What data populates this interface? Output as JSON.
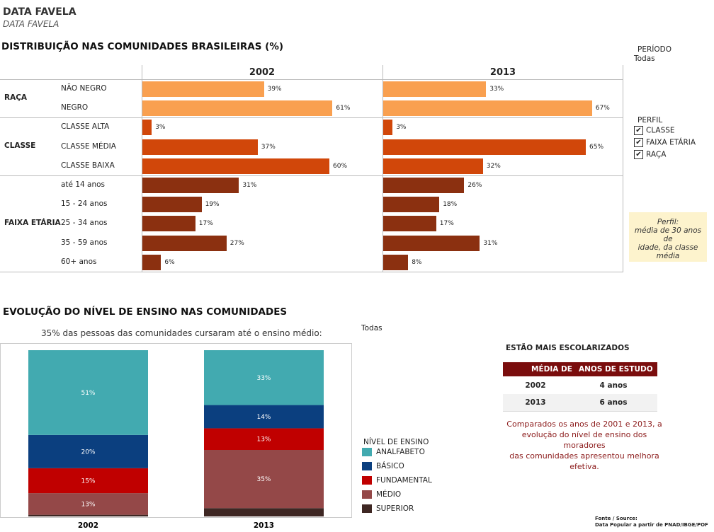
{
  "header": {
    "title": "DATA FAVELA",
    "subtitle": "DATA FAVELA"
  },
  "colors": {
    "raca": "#f9a050",
    "classe": "#d1470a",
    "faixa": "#8b3010",
    "analfabeto": "#42aab0",
    "basico": "#0b3f7f",
    "fundamental": "#c00000",
    "medio": "#944848",
    "superior": "#3e2723",
    "table_header": "#7a0d0d",
    "note_bg": "#fdf3cd"
  },
  "dist": {
    "title": "DISTRIBUIÇÃO NAS COMUNIDADES BRASILEIRAS (%)",
    "years": [
      "2002",
      "2013"
    ],
    "groups": [
      {
        "label": "RAÇA",
        "color_key": "raca",
        "rows": [
          {
            "label": "NÃO NEGRO",
            "values": [
              39,
              33
            ],
            "labels": [
              "39%",
              "33%"
            ]
          },
          {
            "label": "NEGRO",
            "values": [
              61,
              67
            ],
            "labels": [
              "61%",
              "67%"
            ]
          }
        ]
      },
      {
        "label": "CLASSE",
        "color_key": "classe",
        "rows": [
          {
            "label": "CLASSE ALTA",
            "values": [
              3,
              3
            ],
            "labels": [
              "3%",
              "3%"
            ]
          },
          {
            "label": "CLASSE MÉDIA",
            "values": [
              37,
              65
            ],
            "labels": [
              "37%",
              "65%"
            ]
          },
          {
            "label": "CLASSE BAIXA",
            "values": [
              60,
              32
            ],
            "labels": [
              "60%",
              "32%"
            ]
          }
        ]
      },
      {
        "label": "FAIXA ETÁRIA",
        "color_key": "faixa",
        "rows": [
          {
            "label": "até 14 anos",
            "values": [
              31,
              26
            ],
            "labels": [
              "31%",
              "26%"
            ]
          },
          {
            "label": "15 - 24 anos",
            "values": [
              19,
              18
            ],
            "labels": [
              "19%",
              "18%"
            ]
          },
          {
            "label": "25 - 34 anos",
            "values": [
              17,
              17
            ],
            "labels": [
              "17%",
              "17%"
            ]
          },
          {
            "label": "35 - 59 anos",
            "values": [
              27,
              31
            ],
            "labels": [
              "27%",
              "31%"
            ]
          },
          {
            "label": "60+ anos",
            "values": [
              6,
              8
            ],
            "labels": [
              "6%",
              "8%"
            ]
          }
        ]
      }
    ]
  },
  "filters": {
    "periodo_label": "PERÍODO",
    "periodo_value": "Todas",
    "perfil_label": "PERFIL",
    "perfil_options": [
      {
        "label": "CLASSE",
        "checked": "✔"
      },
      {
        "label": "FAIXA ETÁRIA",
        "checked": "✔"
      },
      {
        "label": "RAÇA",
        "checked": "✔"
      }
    ]
  },
  "note": {
    "line1": "Perfil:",
    "line2": "média de 30 anos de",
    "line3": "idade, da classe",
    "line4": "média"
  },
  "ensino": {
    "title": "EVOLUÇÃO DO NÍVEL DE ENSINO NAS COMUNIDADES",
    "subtitle": "35% das pessoas das comunidades cursaram até o ensino médio:",
    "filter_value": "Todas",
    "legend_title": "NÍVEL DE ENSINO",
    "legend": [
      {
        "label": "ANALFABETO",
        "color_key": "analfabeto"
      },
      {
        "label": "BÁSICO",
        "color_key": "basico"
      },
      {
        "label": "FUNDAMENTAL",
        "color_key": "fundamental"
      },
      {
        "label": "MÉDIO",
        "color_key": "medio"
      },
      {
        "label": "SUPERIOR",
        "color_key": "superior"
      }
    ]
  },
  "chart_data": [
    {
      "type": "bar",
      "title": "DISTRIBUIÇÃO NAS COMUNIDADES BRASILEIRAS (%)",
      "categories": [
        "NÃO NEGRO",
        "NEGRO",
        "CLASSE ALTA",
        "CLASSE MÉDIA",
        "CLASSE BAIXA",
        "até 14 anos",
        "15 - 24 anos",
        "25 - 34 anos",
        "35 - 59 anos",
        "60+ anos"
      ],
      "series": [
        {
          "name": "2002",
          "values": [
            39,
            61,
            3,
            37,
            60,
            31,
            19,
            17,
            27,
            6
          ]
        },
        {
          "name": "2013",
          "values": [
            33,
            67,
            3,
            65,
            32,
            26,
            18,
            17,
            31,
            8
          ]
        }
      ]
    },
    {
      "type": "bar",
      "title": "EVOLUÇÃO DO NÍVEL DE ENSINO NAS COMUNIDADES",
      "categories": [
        "2002",
        "2013"
      ],
      "series": [
        {
          "name": "ANALFABETO",
          "values": [
            51,
            33
          ],
          "labels": [
            "51%",
            "33%"
          ]
        },
        {
          "name": "BÁSICO",
          "values": [
            20,
            14
          ],
          "labels": [
            "20%",
            "14%"
          ]
        },
        {
          "name": "FUNDAMENTAL",
          "values": [
            15,
            13
          ],
          "labels": [
            "15%",
            "13%"
          ]
        },
        {
          "name": "MÉDIO",
          "values": [
            13,
            35
          ],
          "labels": [
            "13%",
            "35%"
          ]
        },
        {
          "name": "SUPERIOR",
          "values": [
            1,
            5
          ],
          "labels": [
            "",
            ""
          ]
        }
      ]
    }
  ],
  "escolarizados": {
    "title": "ESTÃO MAIS ESCOLARIZADOS",
    "col1": "MÉDIA DE",
    "col2": "ANOS DE ESTUDO",
    "rows": [
      {
        "year": "2002",
        "value": "4 anos"
      },
      {
        "year": "2013",
        "value": "6 anos"
      }
    ],
    "comment1": "Comparados os anos de 2001 e 2013, a",
    "comment2": "evolução do nível de ensino dos",
    "comment3": "moradores",
    "comment4": "das comunidades apresentou melhora",
    "comment5": "efetiva."
  },
  "source": {
    "line1": "Fonte / Source:",
    "line2": "Data Popular a partir de PNAD/IBGE/POF"
  }
}
